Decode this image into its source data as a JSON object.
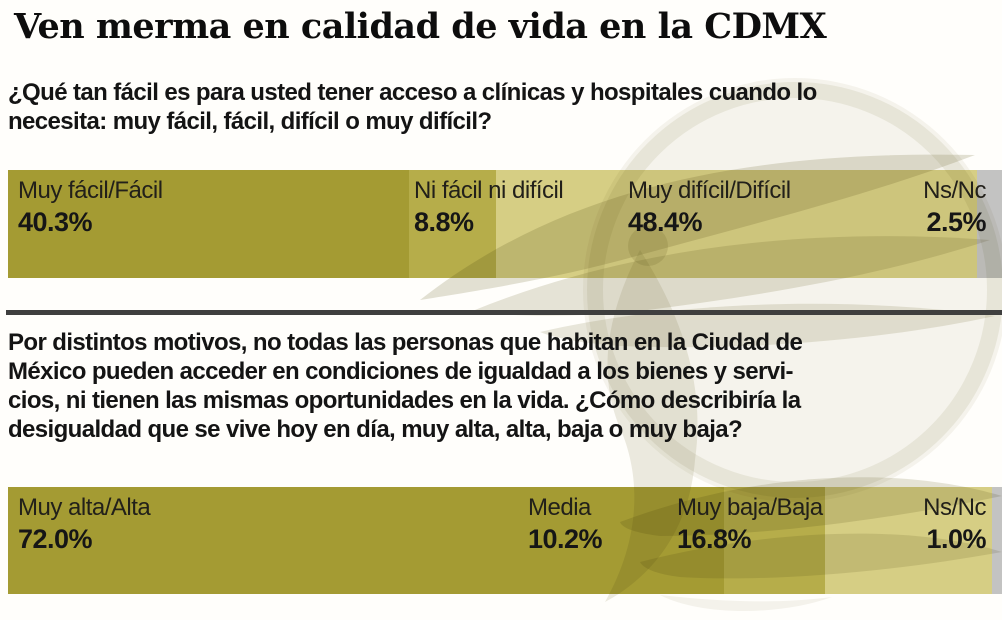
{
  "title": "Ven merma en calidad de vida en la CDMX",
  "colors": {
    "segment_palette": [
      "#a49b33",
      "#b6ad4a",
      "#d6ce84",
      "#c3c3c2"
    ],
    "divider": "#3f3f3f",
    "background": "#fffefb",
    "text": "#141414",
    "watermark": "#6e6730"
  },
  "watermark_name": "eagle-emblem-watermark",
  "chart_data": [
    {
      "type": "bar",
      "subtype": "horizontal-stacked-100pct",
      "question": "¿Qué tan fácil es para usted tener acceso a clínicas y hospitales cuando lo\nnecesita: muy fácil, fácil, difícil o muy difícil?",
      "categories": [
        "Muy fácil/Fácil",
        "Ni fácil ni difícil",
        "Muy difícil/Difícil",
        "Ns/Nc"
      ],
      "values": [
        40.3,
        8.8,
        48.4,
        2.5
      ],
      "value_labels": [
        "40.3%",
        "8.8%",
        "48.4%",
        "2.5%"
      ],
      "unit": "%",
      "xlim": [
        0,
        100
      ],
      "legend": "none",
      "grid": false
    },
    {
      "type": "bar",
      "subtype": "horizontal-stacked-100pct",
      "question": "Por distintos motivos, no todas las personas que habitan en la Ciudad de\nMéxico pueden acceder en condiciones de igualdad a los bienes y servi-\ncios, ni tienen las mismas oportunidades en la vida. ¿Cómo describiría la\ndesigualdad que se vive hoy en día, muy alta, alta, baja o muy baja?",
      "categories": [
        "Muy alta/Alta",
        "Media",
        "Muy baja/Baja",
        "Ns/Nc"
      ],
      "values": [
        72.0,
        10.2,
        16.8,
        1.0
      ],
      "value_labels": [
        "72.0%",
        "10.2%",
        "16.8%",
        "1.0%"
      ],
      "unit": "%",
      "xlim": [
        0,
        100
      ],
      "legend": "none",
      "grid": false
    }
  ]
}
